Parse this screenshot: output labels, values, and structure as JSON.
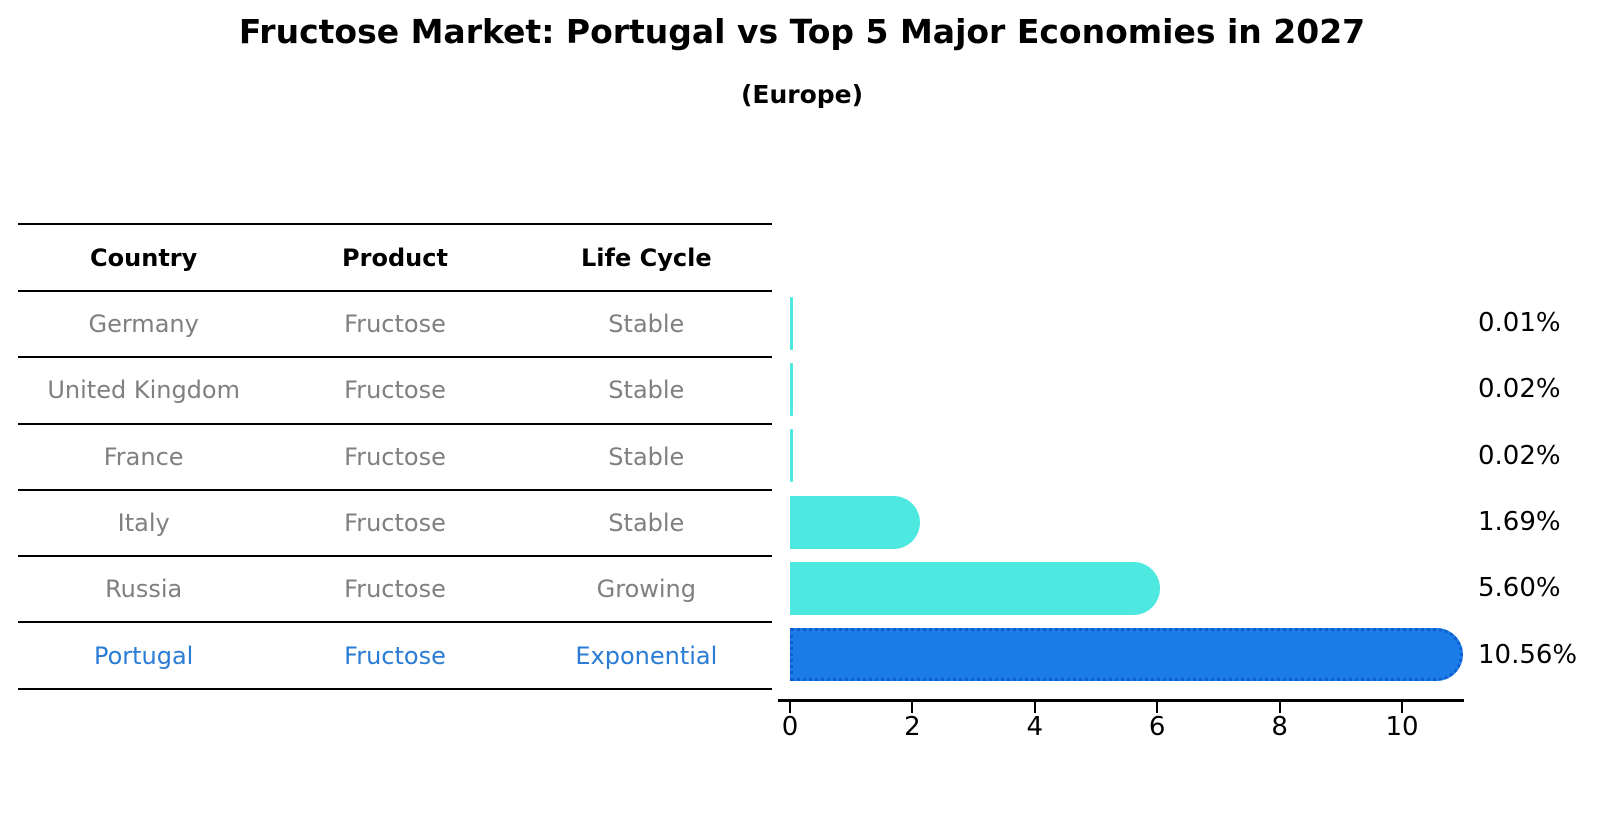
{
  "header": {
    "title": "Fructose Market: Portugal vs Top 5 Major Economies in 2027",
    "subtitle": "(Europe)"
  },
  "table": {
    "columns": [
      "Country",
      "Product",
      "Life Cycle"
    ],
    "rows": [
      {
        "country": "Germany",
        "product": "Fructose",
        "life_cycle": "Stable",
        "highlight": false
      },
      {
        "country": "United Kingdom",
        "product": "Fructose",
        "life_cycle": "Stable",
        "highlight": false
      },
      {
        "country": "France",
        "product": "Fructose",
        "life_cycle": "Stable",
        "highlight": false
      },
      {
        "country": "Italy",
        "product": "Fructose",
        "life_cycle": "Stable",
        "highlight": false
      },
      {
        "country": "Russia",
        "product": "Fructose",
        "life_cycle": "Growing",
        "highlight": false
      },
      {
        "country": "Portugal",
        "product": "Fructose",
        "life_cycle": "Exponential",
        "highlight": true
      }
    ]
  },
  "chart_data": {
    "type": "bar",
    "orientation": "horizontal",
    "title": "Fructose Market: Portugal vs Top 5 Major Economies in 2027",
    "subtitle": "(Europe)",
    "categories": [
      "Germany",
      "United Kingdom",
      "France",
      "Italy",
      "Russia",
      "Portugal"
    ],
    "values": [
      0.01,
      0.02,
      0.02,
      1.69,
      5.6,
      10.56
    ],
    "value_labels": [
      "0.01%",
      "0.02%",
      "0.02%",
      "1.69%",
      "5.60%",
      "10.56%"
    ],
    "xticks": [
      0,
      2,
      4,
      6,
      8,
      10
    ],
    "xlim": [
      0,
      11
    ],
    "grid": false,
    "legend": false,
    "colors": {
      "default_bar": "#4de8e0",
      "highlight_bar": "#1b7ce8",
      "highlight_border": "#0d5ecf",
      "highlight_text": "#2a7cd4",
      "row_text": "#808080",
      "header_text": "#000000",
      "axis": "#000000"
    }
  }
}
